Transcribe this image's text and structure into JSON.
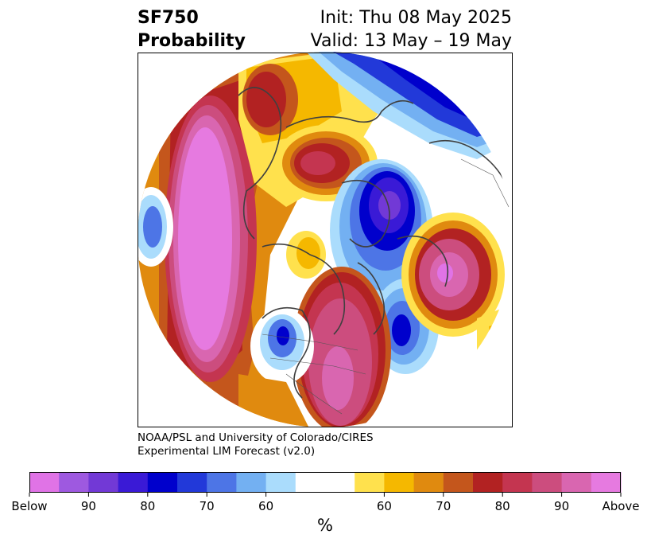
{
  "title": {
    "variable": "SF750",
    "quantity": "Probability",
    "init": "Init: Thu 08 May 2025",
    "valid": "Valid: 13 May – 19 May"
  },
  "credit": {
    "line1": "NOAA/PSL and University of Colorado/CIRES",
    "line2": "Experimental LIM Forecast (v2.0)"
  },
  "colorbar": {
    "colors": [
      "#e073e6",
      "#9e59e0",
      "#7239d6",
      "#3a1ad6",
      "#0000cc",
      "#2239d9",
      "#4d75e6",
      "#73b0f2",
      "#aadcfc",
      "#ffffff",
      "#ffe14d",
      "#f5b800",
      "#e08a0f",
      "#c4561c",
      "#b22222",
      "#c43550",
      "#cc4d7e",
      "#d966b0",
      "#e67ae0"
    ],
    "tick_labels": [
      "Below",
      "90",
      "80",
      "70",
      "60",
      "60",
      "70",
      "80",
      "90",
      "Above"
    ],
    "unit": "%"
  }
}
